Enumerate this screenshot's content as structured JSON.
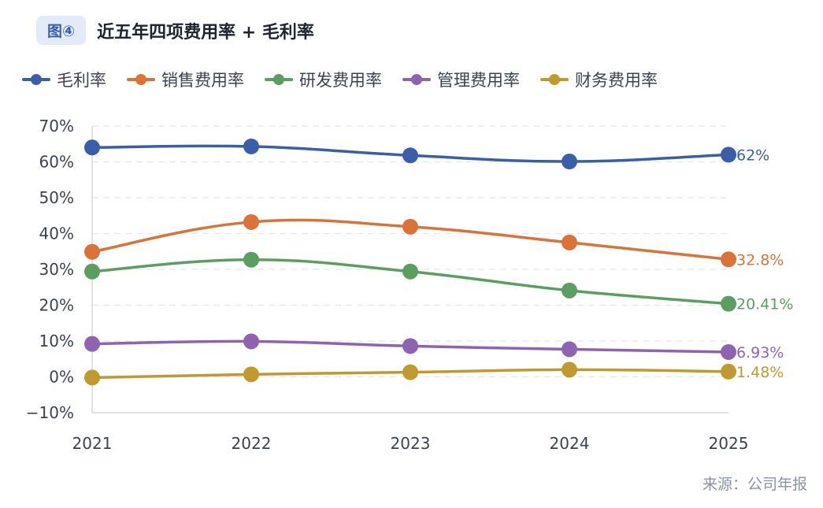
{
  "header": {
    "badge": "图④",
    "title": "近五年四项费用率 + 毛利率"
  },
  "source": "来源：公司年报",
  "chart_data": {
    "type": "line",
    "categories": [
      "2021",
      "2022",
      "2023",
      "2024",
      "2025"
    ],
    "ylim": [
      -10,
      70
    ],
    "yticks": [
      -10,
      0,
      10,
      20,
      30,
      40,
      50,
      60,
      70
    ],
    "ytick_labels": [
      "−10%",
      "0%",
      "10%",
      "20%",
      "30%",
      "40%",
      "50%",
      "60%",
      "70%"
    ],
    "grid": true,
    "legend": "top-left",
    "series": [
      {
        "name": "毛利率",
        "color": "#3a5ea8",
        "values": [
          64.0,
          64.3,
          61.8,
          60.1,
          62
        ],
        "end_label": "62%"
      },
      {
        "name": "销售费用率",
        "color": "#d9733a",
        "values": [
          34.9,
          43.2,
          41.9,
          37.5,
          32.8
        ],
        "end_label": "32.8%"
      },
      {
        "name": "研发费用率",
        "color": "#5c9e62",
        "values": [
          29.4,
          32.7,
          29.4,
          24.1,
          20.41
        ],
        "end_label": "20.41%"
      },
      {
        "name": "管理费用率",
        "color": "#8e63b0",
        "values": [
          9.2,
          9.9,
          8.6,
          7.7,
          6.93
        ],
        "end_label": "6.93%"
      },
      {
        "name": "财务费用率",
        "color": "#bf9a2e",
        "values": [
          -0.2,
          0.7,
          1.3,
          2.0,
          1.48
        ],
        "end_label": "1.48%"
      }
    ]
  }
}
